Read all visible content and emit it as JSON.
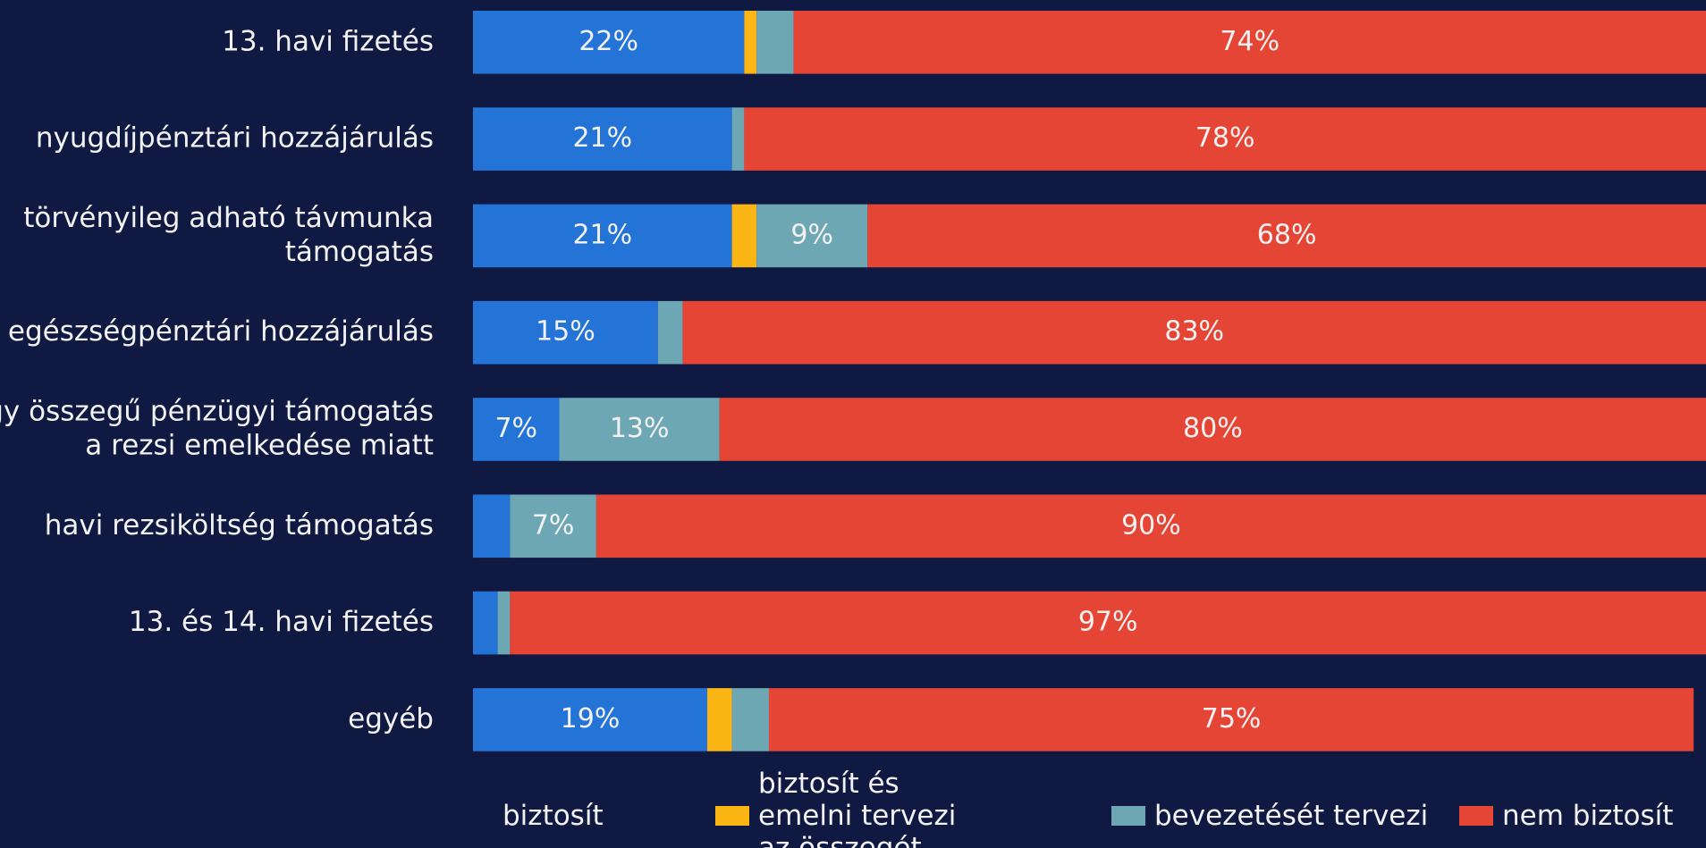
{
  "chart_data": {
    "type": "stacked-barh",
    "categories": [
      [
        "13. havi fizetés"
      ],
      [
        "nyugdíjpénztári hozzájárulás"
      ],
      [
        "törvényileg adható távmunka",
        "támogatás"
      ],
      [
        "egészségpénztári hozzájárulás"
      ],
      [
        "egy összegű pénzügyi támogatás",
        "a rezsi emelkedése miatt"
      ],
      [
        "havi rezsiköltség támogatás"
      ],
      [
        "13. és 14. havi fizetés"
      ],
      [
        "egyéb"
      ]
    ],
    "series": [
      {
        "name": "biztosít",
        "color": "#2474d8",
        "values": [
          22,
          21,
          21,
          15,
          7,
          3,
          2,
          19
        ],
        "value_labels": [
          "22%",
          "21%",
          "21%",
          "15%",
          "7%",
          null,
          null,
          "19%"
        ]
      },
      {
        "name": "biztosít és emelni tervezi az összegét",
        "color": "#fbb616",
        "values": [
          1,
          0,
          2,
          0,
          0,
          0,
          0,
          2
        ],
        "value_labels": [
          null,
          null,
          null,
          null,
          null,
          null,
          null,
          null
        ]
      },
      {
        "name": "bevezetését tervezi",
        "color": "#6ea7b4",
        "values": [
          3,
          1,
          9,
          2,
          13,
          7,
          1,
          3
        ],
        "value_labels": [
          null,
          null,
          "9%",
          null,
          "13%",
          "7%",
          null,
          null
        ]
      },
      {
        "name": "nem biztosít",
        "color": "#e54535",
        "values": [
          74,
          78,
          68,
          83,
          80,
          90,
          97,
          75
        ],
        "value_labels": [
          "74%",
          "78%",
          "68%",
          "83%",
          "80%",
          "90%",
          "97%",
          "75%"
        ]
      }
    ],
    "xlim": [
      0,
      100
    ]
  }
}
